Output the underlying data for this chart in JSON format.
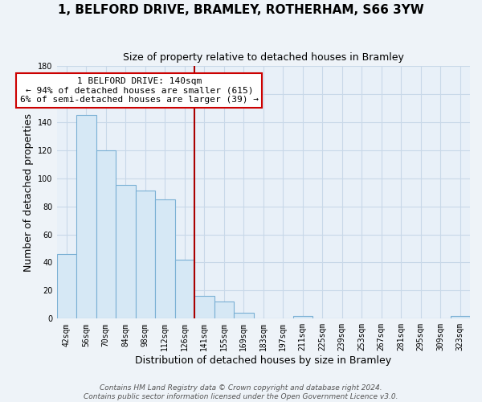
{
  "title": "1, BELFORD DRIVE, BRAMLEY, ROTHERHAM, S66 3YW",
  "subtitle": "Size of property relative to detached houses in Bramley",
  "xlabel": "Distribution of detached houses by size in Bramley",
  "ylabel": "Number of detached properties",
  "bin_labels": [
    "42sqm",
    "56sqm",
    "70sqm",
    "84sqm",
    "98sqm",
    "112sqm",
    "126sqm",
    "141sqm",
    "155sqm",
    "169sqm",
    "183sqm",
    "197sqm",
    "211sqm",
    "225sqm",
    "239sqm",
    "253sqm",
    "267sqm",
    "281sqm",
    "295sqm",
    "309sqm",
    "323sqm"
  ],
  "bar_heights": [
    46,
    145,
    120,
    95,
    91,
    85,
    42,
    16,
    12,
    4,
    0,
    0,
    2,
    0,
    0,
    0,
    0,
    0,
    0,
    0,
    2
  ],
  "bar_color": "#d6e8f5",
  "bar_edge_color": "#7ab0d4",
  "annotation_line1": "1 BELFORD DRIVE: 140sqm",
  "annotation_line2": "← 94% of detached houses are smaller (615)",
  "annotation_line3": "6% of semi-detached houses are larger (39) →",
  "annotation_box_color": "#ffffff",
  "annotation_box_edge_color": "#cc0000",
  "vline_color": "#aa0000",
  "ylim": [
    0,
    180
  ],
  "yticks": [
    0,
    20,
    40,
    60,
    80,
    100,
    120,
    140,
    160,
    180
  ],
  "footnote1": "Contains HM Land Registry data © Crown copyright and database right 2024.",
  "footnote2": "Contains public sector information licensed under the Open Government Licence v3.0.",
  "background_color": "#eef3f8",
  "plot_bg_color": "#e8f0f8",
  "grid_color": "#c8d8e8",
  "title_fontsize": 11,
  "subtitle_fontsize": 9,
  "axis_label_fontsize": 9,
  "tick_fontsize": 7,
  "annotation_fontsize": 8,
  "footnote_fontsize": 6.5
}
